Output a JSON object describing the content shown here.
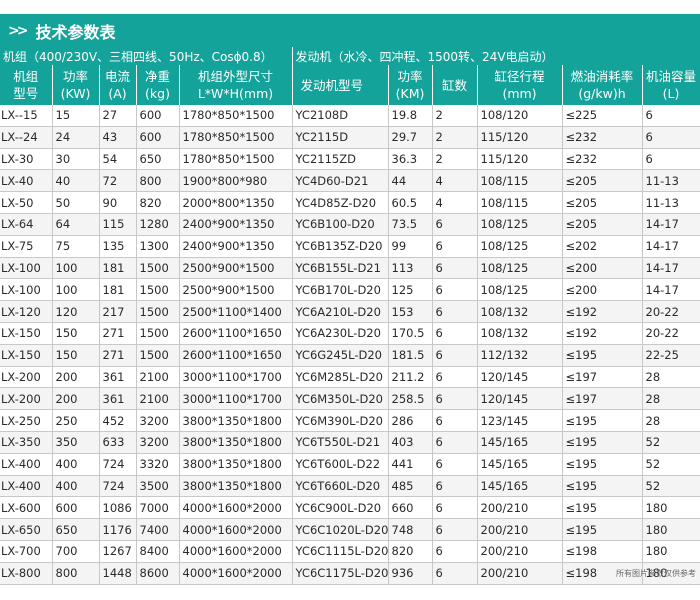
{
  "title": "技术参数表",
  "group_left": "机组（400/230V、三相四线、50Hz、Cosϕ0.8）",
  "group_right": "发动机（水冷、四冲程、1500转、24V电启动）",
  "headers": [
    [
      "机组",
      "型号"
    ],
    [
      "功率",
      "(KW)"
    ],
    [
      "电流",
      "(A)"
    ],
    [
      "净重",
      "(kg)"
    ],
    [
      "机组外型尺寸",
      "L*W*H(mm)"
    ],
    [
      "发动机型号",
      ""
    ],
    [
      "功率",
      "(KM)"
    ],
    [
      "缸数",
      ""
    ],
    [
      "缸径行程",
      "(mm)"
    ],
    [
      "燃油消耗率",
      "(g/kw)h"
    ],
    [
      "机油容量",
      "(L)"
    ]
  ],
  "rows": [
    [
      "LX--15",
      "15",
      "27",
      "600",
      "1780*850*1500",
      "YC2108D",
      "19.8",
      "2",
      "108/120",
      "≤225",
      "6"
    ],
    [
      "LX--24",
      "24",
      "43",
      "600",
      "1780*850*1500",
      "YC2115D",
      "29.7",
      "2",
      "115/120",
      "≤232",
      "6"
    ],
    [
      "LX-30",
      "30",
      "54",
      "650",
      "1780*850*1500",
      "YC2115ZD",
      "36.3",
      "2",
      "115/120",
      "≤232",
      "6"
    ],
    [
      "LX-40",
      "40",
      "72",
      "800",
      "1900*800*980",
      "YC4D60-D21",
      "44",
      "4",
      "108/115",
      "≤205",
      "11-13"
    ],
    [
      "LX-50",
      "50",
      "90",
      "820",
      "2000*800*1350",
      "YC4D85Z-D20",
      "60.5",
      "4",
      "108/115",
      "≤205",
      "11-13"
    ],
    [
      "LX-64",
      "64",
      "115",
      "1280",
      "2400*900*1350",
      "YC6B100-D20",
      "73.5",
      "6",
      "108/125",
      "≤205",
      "14-17"
    ],
    [
      "LX-75",
      "75",
      "135",
      "1300",
      "2400*900*1350",
      "YC6B135Z-D20",
      "99",
      "6",
      "108/125",
      "≤202",
      "14-17"
    ],
    [
      "LX-100",
      "100",
      "181",
      "1500",
      "2500*900*1500",
      "YC6B155L-D21",
      "113",
      "6",
      "108/125",
      "≤200",
      "14-17"
    ],
    [
      "LX-100",
      "100",
      "181",
      "1500",
      "2500*900*1500",
      "YC6B170L-D20",
      "125",
      "6",
      "108/125",
      "≤200",
      "14-17"
    ],
    [
      "LX-120",
      "120",
      "217",
      "1500",
      "2500*1100*1400",
      "YC6A210L-D20",
      "153",
      "6",
      "108/132",
      "≤192",
      "20-22"
    ],
    [
      "LX-150",
      "150",
      "271",
      "1500",
      "2600*1100*1650",
      "YC6A230L-D20",
      "170.5",
      "6",
      "108/132",
      "≤192",
      "20-22"
    ],
    [
      "LX-150",
      "150",
      "271",
      "1500",
      "2600*1100*1650",
      "YC6G245L-D20",
      "181.5",
      "6",
      "112/132",
      "≤195",
      "22-25"
    ],
    [
      "LX-200",
      "200",
      "361",
      "2100",
      "3000*1100*1700",
      "YC6M285L-D20",
      "211.2",
      "6",
      "120/145",
      "≤197",
      "28"
    ],
    [
      "LX-200",
      "200",
      "361",
      "2100",
      "3000*1100*1700",
      "YC6M350L-D20",
      "258.5",
      "6",
      "120/145",
      "≤197",
      "28"
    ],
    [
      "LX-250",
      "250",
      "452",
      "3200",
      "3800*1350*1800",
      "YC6M390L-D20",
      "286",
      "6",
      "123/145",
      "≤195",
      "28"
    ],
    [
      "LX-350",
      "350",
      "633",
      "3200",
      "3800*1350*1800",
      "YC6T550L-D21",
      "403",
      "6",
      "145/165",
      "≤195",
      "52"
    ],
    [
      "LX-400",
      "400",
      "724",
      "3320",
      "3800*1350*1800",
      "YC6T600L-D22",
      "441",
      "6",
      "145/165",
      "≤195",
      "52"
    ],
    [
      "LX-400",
      "400",
      "724",
      "3500",
      "3800*1350*1800",
      "YC6T660L-D20",
      "485",
      "6",
      "145/165",
      "≤195",
      "52"
    ],
    [
      "LX-600",
      "600",
      "1086",
      "7000",
      "4000*1600*2000",
      "YC6C900L-D20",
      "660",
      "6",
      "200/210",
      "≤195",
      "180"
    ],
    [
      "LX-650",
      "650",
      "1176",
      "7400",
      "4000*1600*2000",
      "YC6C1020L-D20",
      "748",
      "6",
      "200/210",
      "≤195",
      "180"
    ],
    [
      "LX-700",
      "700",
      "1267",
      "8400",
      "4000*1600*2000",
      "YC6C1115L-D20",
      "820",
      "6",
      "200/210",
      "≤198",
      "180"
    ],
    [
      "LX-800",
      "800",
      "1448",
      "8600",
      "4000*1600*2000",
      "YC6C1175L-D20",
      "936",
      "6",
      "200/210",
      "≤198",
      "180"
    ]
  ],
  "footnote": "所有图片参数仅供参考",
  "colors": {
    "accent": "#14a39a",
    "text": "#2a2a2a",
    "grid": "#c8c8c8"
  }
}
